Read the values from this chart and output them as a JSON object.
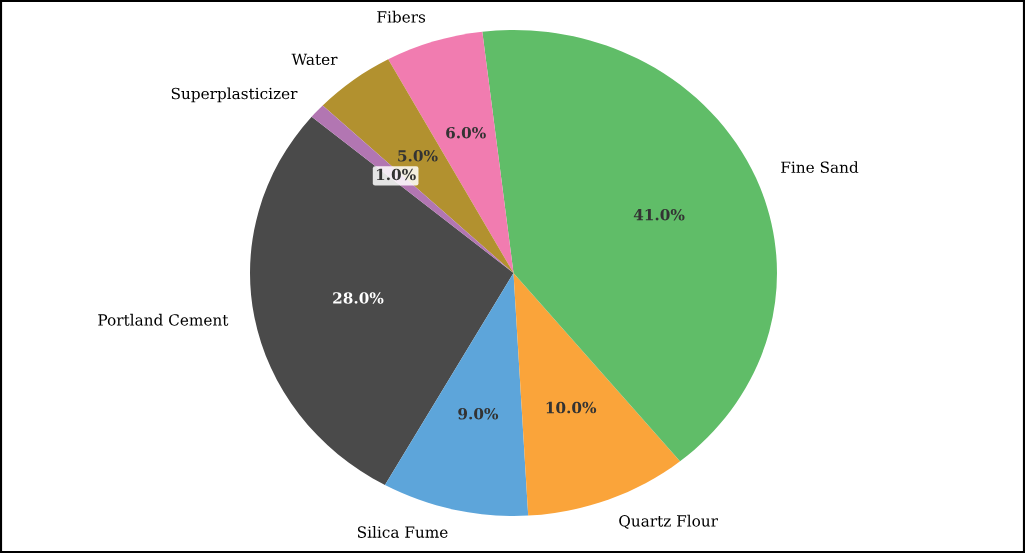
{
  "chart_data": {
    "type": "pie",
    "categories": [
      "Portland Cement",
      "Silica Fume",
      "Quartz Flour",
      "Fine Sand",
      "Fibers",
      "Water",
      "Superplasticizer"
    ],
    "values": [
      28,
      9,
      10,
      41,
      6,
      5,
      1
    ],
    "value_labels": [
      "28.0%",
      "9.0%",
      "10.0%",
      "41.0%",
      "6.0%",
      "5.0%",
      "1.0%"
    ],
    "colors": [
      "#4a4a4a",
      "#5da5da",
      "#faa43a",
      "#60bd68",
      "#f17cb0",
      "#b2912f",
      "#b276b2"
    ]
  }
}
